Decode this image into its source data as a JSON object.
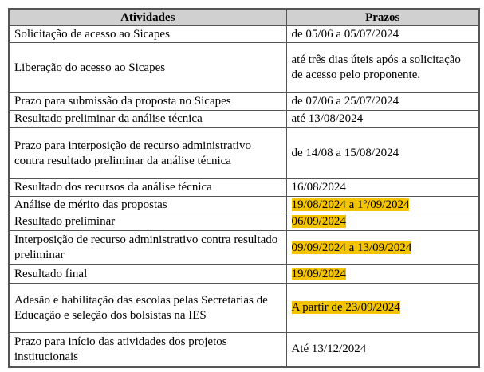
{
  "table": {
    "headers": [
      "Atividades",
      "Prazos"
    ],
    "highlight_color": "#f5c400",
    "rows": [
      {
        "activity": "Solicitação de acesso ao Sicapes",
        "deadline": "de 05/06 a 05/07/2024",
        "highlighted": false
      },
      {
        "activity": "Liberação do acesso ao Sicapes",
        "deadline": "até três dias úteis após a solicitação de acesso pelo proponente.",
        "highlighted": false
      },
      {
        "activity": "Prazo para submissão da proposta no Sicapes",
        "deadline": "de 07/06 a 25/07/2024",
        "highlighted": false
      },
      {
        "activity": "Resultado preliminar da análise técnica",
        "deadline": "até 13/08/2024",
        "highlighted": false
      },
      {
        "activity": "Prazo para interposição de recurso administrativo contra resultado preliminar da análise técnica",
        "deadline": "de 14/08 a 15/08/2024",
        "highlighted": false
      },
      {
        "activity": "Resultado dos recursos da análise técnica",
        "deadline": "16/08/2024",
        "highlighted": false
      },
      {
        "activity": "Análise de mérito das propostas",
        "deadline": "19/08/2024 a 1º/09/2024",
        "highlighted": true
      },
      {
        "activity": "Resultado preliminar",
        "deadline": "06/09/2024",
        "highlighted": true
      },
      {
        "activity": "Interposição de recurso administrativo contra resultado preliminar",
        "deadline": "09/09/2024 a 13/09/2024",
        "highlighted": true
      },
      {
        "activity": "Resultado final",
        "deadline": "19/09/2024",
        "highlighted": true
      },
      {
        "activity": "Adesão e habilitação das escolas pelas Secretarias de Educação e seleção dos bolsistas na IES",
        "deadline": "A partir de 23/09/2024",
        "highlighted": true
      },
      {
        "activity": "Prazo para início das atividades dos projetos institucionais",
        "deadline": "Até 13/12/2024",
        "highlighted": false
      }
    ]
  }
}
